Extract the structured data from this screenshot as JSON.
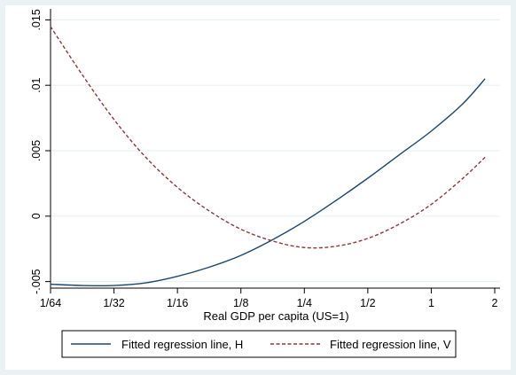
{
  "chart_data": {
    "type": "line",
    "xlabel": "Real GDP per capita (US=1)",
    "ylabel": "",
    "x_scale": "log2",
    "x_ticks": [
      "1/64",
      "1/32",
      "1/16",
      "1/8",
      "1/4",
      "1/2",
      "1",
      "2"
    ],
    "x_tick_values": [
      0.015625,
      0.03125,
      0.0625,
      0.125,
      0.25,
      0.5,
      1,
      2
    ],
    "xlim": [
      0.015625,
      2
    ],
    "y_ticks": [
      "-.005",
      "0",
      ".005",
      ".01",
      ".015"
    ],
    "y_tick_values": [
      -0.005,
      0,
      0.005,
      0.01,
      0.015
    ],
    "ylim": [
      -0.0055,
      0.0155
    ],
    "grid": "horizontal",
    "legend_position": "bottom",
    "series": [
      {
        "name": "Fitted regression line, H",
        "color": "#1a476f",
        "style": "solid",
        "x": [
          0.0156,
          0.0221,
          0.0312,
          0.0442,
          0.0625,
          0.0884,
          0.125,
          0.1768,
          0.25,
          0.3536,
          0.5,
          0.7071,
          1,
          1.414,
          1.8
        ],
        "y": [
          -0.0052,
          -0.0053,
          -0.0053,
          -0.0051,
          -0.0046,
          -0.0039,
          -0.003,
          -0.0018,
          -0.0004,
          0.0012,
          0.0029,
          0.0047,
          0.0065,
          0.0086,
          0.0105
        ]
      },
      {
        "name": "Fitted regression line, V",
        "color": "#90353b",
        "style": "dashed",
        "x": [
          0.0156,
          0.0221,
          0.0312,
          0.0442,
          0.0625,
          0.0884,
          0.125,
          0.1768,
          0.25,
          0.3536,
          0.5,
          0.7071,
          1,
          1.414,
          1.8
        ],
        "y": [
          0.0145,
          0.0108,
          0.0074,
          0.0045,
          0.0022,
          0.0004,
          -0.001,
          -0.0019,
          -0.0024,
          -0.0023,
          -0.0017,
          -0.0006,
          0.0009,
          0.0029,
          0.0045
        ]
      }
    ]
  }
}
